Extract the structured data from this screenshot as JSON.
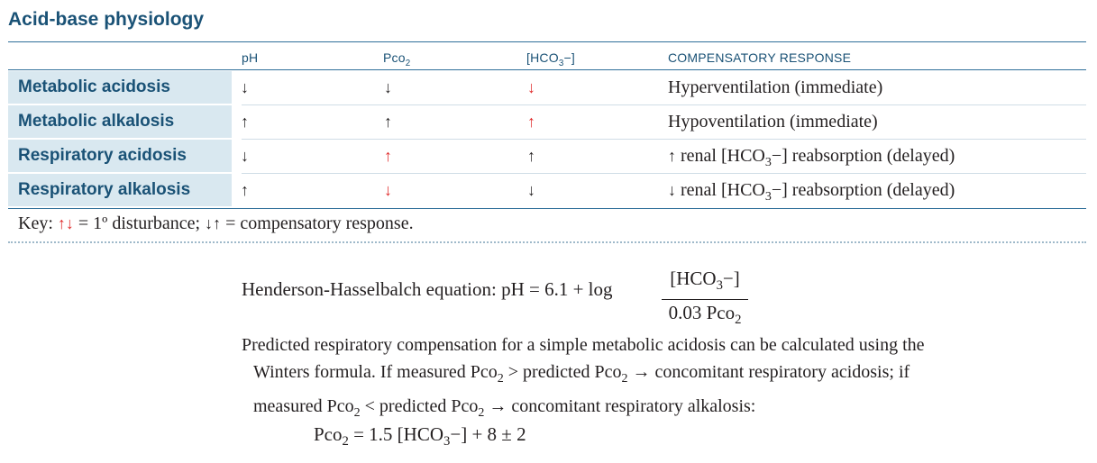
{
  "title": "Acid-base physiology",
  "header": {
    "ph": "pH",
    "pco2_main": "Pco",
    "pco2_sub": "2",
    "hco3_pre": "[HCO",
    "hco3_sub": "3",
    "hco3_post": "−]",
    "comp": "COMPENSATORY RESPONSE"
  },
  "rows": [
    {
      "label": "Metabolic acidosis",
      "ph": "↓",
      "pco2": "↓",
      "hco3": "↓",
      "resp": "Hyperventilation (immediate)"
    },
    {
      "label": "Metabolic alkalosis",
      "ph": "↑",
      "pco2": "↑",
      "hco3": "↑",
      "resp": "Hypoventilation (immediate)"
    },
    {
      "label": "Respiratory acidosis",
      "ph": "↓",
      "pco2": "↑",
      "hco3": "↑",
      "resp_arrow": "↑",
      "resp_pre": " renal [HCO",
      "resp_sub": "3",
      "resp_post": "−] reabsorption (delayed)"
    },
    {
      "label": "Respiratory alkalosis",
      "ph": "↑",
      "pco2": "↓",
      "hco3": "↓",
      "resp_arrow": "↓",
      "resp_pre": " renal [HCO",
      "resp_sub": "3",
      "resp_post": "−] reabsorption (delayed)"
    }
  ],
  "key": {
    "prefix": "Key: ",
    "red_arrows": "↑↓",
    "mid": " = 1º disturbance; ",
    "black_arrows": "↓↑",
    "suffix": " = compensatory response."
  },
  "hh": {
    "prefix": "Henderson-Hasselbalch equation: pH = 6.1 + log",
    "num_pre": "[HCO",
    "num_sub": "3",
    "num_post": "−]",
    "den_main": "0.03 Pco",
    "den_sub": "2"
  },
  "paragraph": {
    "l1": "Predicted respiratory compensation for a simple metabolic acidosis can be calculated using the",
    "l2a": "Winters formula. If measured Pco",
    "l2b": " > predicted Pco",
    "l2c": " → concomitant respiratory acidosis; if",
    "l3a": "measured Pco",
    "l3b": " < predicted Pco",
    "l3c": " → concomitant respiratory alkalosis:",
    "sub2": "2"
  },
  "winters": {
    "a": "Pco",
    "sub2": "2",
    "b": " = 1.5 [HCO",
    "sub3": "3",
    "c": "−] + 8 ± 2"
  },
  "colors": {
    "heading": "#1a5276",
    "label_bg": "#d9e8f0",
    "red_arrow": "#e02b2b"
  }
}
